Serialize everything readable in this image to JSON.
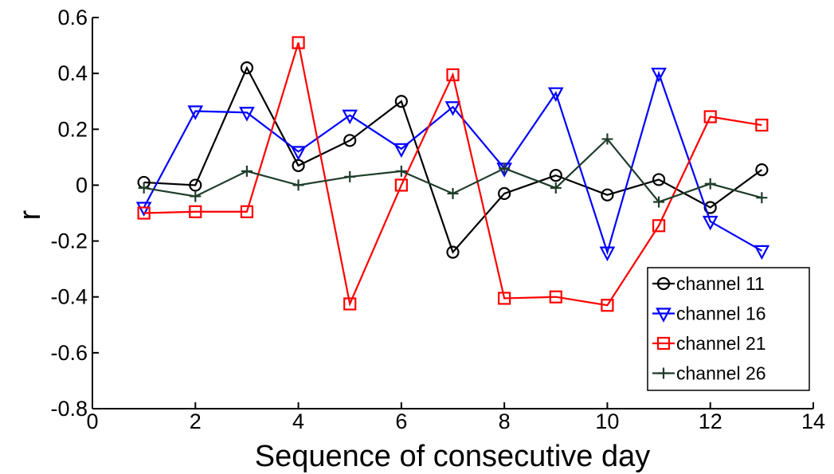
{
  "chart_data": {
    "type": "line",
    "title": "",
    "xlabel": "Sequence of consecutive day",
    "ylabel": "r",
    "xlim": [
      0,
      14
    ],
    "ylim": [
      -0.8,
      0.6
    ],
    "x_ticks": [
      0,
      2,
      4,
      6,
      8,
      10,
      12,
      14
    ],
    "y_ticks": [
      0.6,
      0.4,
      0.2,
      0,
      -0.2,
      -0.4,
      -0.6,
      -0.8
    ],
    "x_tick_labels": [
      "0",
      "2",
      "4",
      "6",
      "8",
      "10",
      "12",
      "14"
    ],
    "y_tick_labels": [
      "0.6",
      "0.4",
      "0.2",
      "0",
      "-0.2",
      "-0.4",
      "-0.6",
      "-0.8"
    ],
    "grid": false,
    "legend_position": "bottom-right",
    "x": [
      1,
      2,
      3,
      4,
      5,
      6,
      7,
      8,
      9,
      10,
      11,
      12,
      13
    ],
    "series": [
      {
        "name": "channel 11",
        "color": "#000000",
        "marker": "circle",
        "values": [
          0.01,
          0.0,
          0.42,
          0.07,
          0.16,
          0.3,
          -0.24,
          -0.03,
          0.035,
          -0.035,
          0.02,
          -0.08,
          0.055
        ]
      },
      {
        "name": "channel 16",
        "color": "#0000ff",
        "marker": "triangle-down",
        "values": [
          -0.08,
          0.265,
          0.26,
          0.12,
          0.25,
          0.13,
          0.28,
          0.06,
          0.33,
          -0.24,
          0.4,
          -0.13,
          -0.235
        ]
      },
      {
        "name": "channel 21",
        "color": "#ff0000",
        "marker": "square",
        "values": [
          -0.1,
          -0.095,
          -0.095,
          0.51,
          -0.425,
          0.0,
          0.395,
          -0.405,
          -0.4,
          -0.43,
          -0.145,
          0.245,
          0.215
        ]
      },
      {
        "name": "channel 26",
        "color": "#1f3d2b",
        "marker": "plus",
        "values": [
          -0.01,
          -0.04,
          0.05,
          0.0,
          0.03,
          0.05,
          -0.03,
          0.06,
          -0.01,
          0.165,
          -0.06,
          0.005,
          -0.045
        ]
      }
    ]
  }
}
